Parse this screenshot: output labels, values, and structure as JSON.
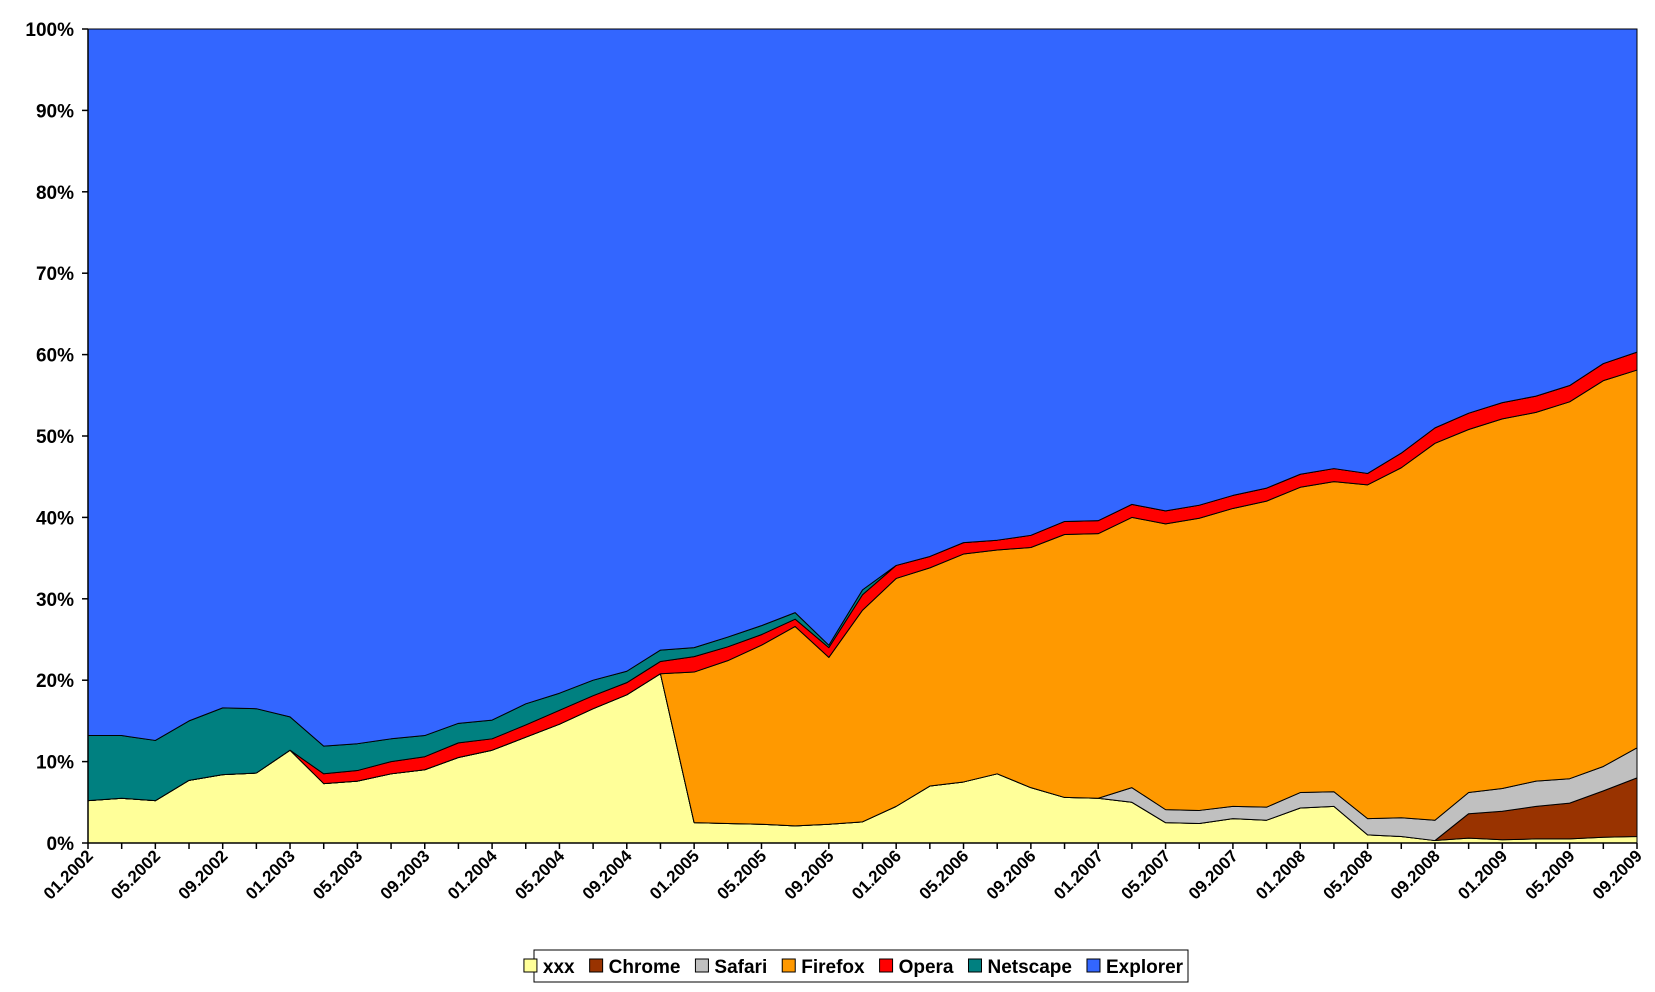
{
  "chart_data": {
    "type": "area",
    "stacked": true,
    "percent_stacked": true,
    "title": "",
    "xlabel": "",
    "ylabel": "",
    "ylim": [
      0,
      100
    ],
    "y_ticks": [
      "0%",
      "10%",
      "20%",
      "30%",
      "40%",
      "50%",
      "60%",
      "70%",
      "80%",
      "90%",
      "100%"
    ],
    "x": [
      "01.2002",
      "03.2002",
      "05.2002",
      "07.2002",
      "09.2002",
      "11.2002",
      "01.2003",
      "03.2003",
      "05.2003",
      "07.2003",
      "09.2003",
      "11.2003",
      "01.2004",
      "03.2004",
      "05.2004",
      "07.2004",
      "09.2004",
      "11.2004",
      "01.2005",
      "03.2005",
      "05.2005",
      "07.2005",
      "09.2005",
      "11.2005",
      "01.2006",
      "03.2006",
      "05.2006",
      "07.2006",
      "09.2006",
      "11.2006",
      "01.2007",
      "03.2007",
      "05.2007",
      "07.2007",
      "09.2007",
      "11.2007",
      "01.2008",
      "03.2008",
      "05.2008",
      "07.2008",
      "09.2008",
      "11.2008",
      "01.2009",
      "03.2009",
      "05.2009",
      "07.2009",
      "09.2009"
    ],
    "x_tick_labels": [
      "01.2002",
      "05.2002",
      "09.2002",
      "01.2003",
      "05.2003",
      "09.2003",
      "01.2004",
      "05.2004",
      "09.2004",
      "01.2005",
      "05.2005",
      "09.2005",
      "01.2006",
      "05.2006",
      "09.2006",
      "01.2007",
      "05.2007",
      "09.2007",
      "01.2008",
      "05.2008",
      "09.2008",
      "01.2009",
      "05.2009",
      "09.2009"
    ],
    "legend": {
      "placement": "bottom-center"
    },
    "series": [
      {
        "name": "xxx",
        "color": "#FFFF99",
        "values": [
          5.2,
          5.5,
          5.2,
          7.7,
          8.4,
          8.6,
          11.4,
          7.3,
          7.6,
          8.5,
          9.0,
          10.5,
          11.4,
          13.0,
          14.6,
          16.5,
          18.2,
          20.8,
          2.5,
          2.4,
          2.3,
          2.1,
          2.3,
          2.6,
          4.5,
          7.0,
          7.5,
          8.5,
          6.8,
          5.6,
          5.5,
          5.0,
          2.5,
          2.4,
          3.0,
          2.8,
          4.3,
          4.5,
          1.0,
          0.8,
          0.3,
          0.6,
          0.4,
          0.5,
          0.5,
          0.7,
          0.8
        ]
      },
      {
        "name": "Chrome",
        "color": "#993300",
        "values": [
          0,
          0,
          0,
          0,
          0,
          0,
          0,
          0,
          0,
          0,
          0,
          0,
          0,
          0,
          0,
          0,
          0,
          0,
          0,
          0,
          0,
          0,
          0,
          0,
          0,
          0,
          0,
          0,
          0,
          0,
          0,
          0,
          0,
          0,
          0,
          0,
          0,
          0,
          0,
          0,
          0,
          3.0,
          3.5,
          4.0,
          4.4,
          5.7,
          7.2
        ]
      },
      {
        "name": "Safari",
        "color": "#C0C0C0",
        "values": [
          0,
          0,
          0,
          0,
          0,
          0,
          0,
          0,
          0,
          0,
          0,
          0,
          0,
          0,
          0,
          0,
          0,
          0,
          0,
          0,
          0,
          0,
          0,
          0,
          0,
          0,
          0,
          0,
          0,
          0,
          0,
          1.8,
          1.6,
          1.6,
          1.5,
          1.6,
          1.9,
          1.8,
          2.0,
          2.3,
          2.5,
          2.6,
          2.8,
          3.1,
          3.0,
          3.0,
          3.7
        ]
      },
      {
        "name": "Firefox",
        "color": "#FF9900",
        "values": [
          0,
          0,
          0,
          0,
          0,
          0,
          0,
          0,
          0,
          0,
          0,
          0,
          0,
          0,
          0,
          0,
          0,
          0,
          18.5,
          20.0,
          22.0,
          24.5,
          20.5,
          26.0,
          28.0,
          26.8,
          28.0,
          27.5,
          29.5,
          32.3,
          32.5,
          33.2,
          35.1,
          35.9,
          36.6,
          37.6,
          37.5,
          38.1,
          41.0,
          43.0,
          46.3,
          44.6,
          45.4,
          45.3,
          46.3,
          47.4,
          46.4
        ]
      },
      {
        "name": "Opera",
        "color": "#FF0000",
        "values": [
          0,
          0,
          0,
          0,
          0,
          0,
          0,
          1.2,
          1.3,
          1.5,
          1.6,
          1.8,
          1.4,
          1.5,
          1.7,
          1.6,
          1.5,
          1.5,
          1.9,
          1.7,
          1.3,
          0.9,
          1.2,
          1.9,
          1.6,
          1.4,
          1.4,
          1.2,
          1.5,
          1.6,
          1.6,
          1.6,
          1.6,
          1.6,
          1.6,
          1.6,
          1.6,
          1.6,
          1.4,
          1.8,
          1.9,
          2.0,
          2.0,
          2.0,
          2.0,
          2.1,
          2.2
        ]
      },
      {
        "name": "Netscape",
        "color": "#008080",
        "values": [
          8.0,
          7.7,
          7.4,
          7.3,
          8.2,
          7.9,
          4.1,
          3.4,
          3.3,
          2.8,
          2.6,
          2.4,
          2.3,
          2.6,
          2.1,
          1.9,
          1.4,
          1.4,
          1.1,
          1.2,
          1.1,
          0.8,
          0.3,
          0.6,
          0,
          0,
          0,
          0,
          0,
          0,
          0,
          0,
          0,
          0,
          0,
          0,
          0,
          0,
          0,
          0,
          0,
          0,
          0,
          0,
          0,
          0,
          0
        ]
      },
      {
        "name": "Explorer",
        "color": "#3366FF",
        "values": [
          86.8,
          86.8,
          87.4,
          85.0,
          83.4,
          83.5,
          84.5,
          88.1,
          87.8,
          87.2,
          86.8,
          85.3,
          84.9,
          82.9,
          81.6,
          80.0,
          78.9,
          76.3,
          76.0,
          74.7,
          73.3,
          71.7,
          75.7,
          68.9,
          65.9,
          64.8,
          63.1,
          62.8,
          62.2,
          60.5,
          60.4,
          58.4,
          59.2,
          58.5,
          57.3,
          56.4,
          54.7,
          54.0,
          54.6,
          52.1,
          49.0,
          47.2,
          45.9,
          45.1,
          43.8,
          41.1,
          39.7
        ]
      }
    ]
  }
}
